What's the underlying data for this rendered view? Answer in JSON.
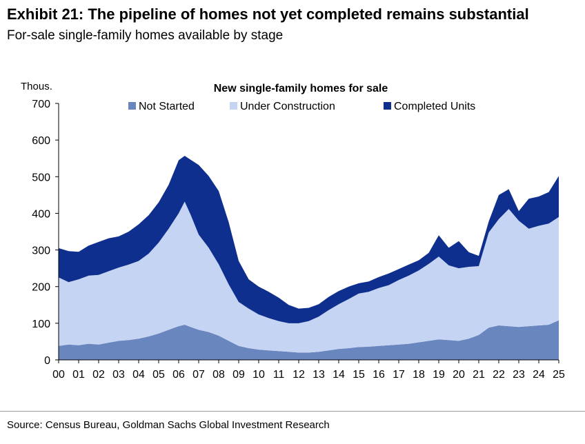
{
  "header": {
    "title": "Exhibit 21: The pipeline of homes not yet completed remains substantial",
    "subtitle": "For-sale single-family homes available by stage"
  },
  "footer": {
    "source": "Source: Census Bureau, Goldman Sachs Global Investment Research"
  },
  "chart_data": {
    "type": "area",
    "stacked": true,
    "title": "New single-family homes for sale",
    "ylabel": "Thous.",
    "xlabel": "",
    "ylim": [
      0,
      700
    ],
    "xlim": [
      2000,
      2025
    ],
    "yticks": [
      0,
      100,
      200,
      300,
      400,
      500,
      600,
      700
    ],
    "xtick_labels": [
      "00",
      "01",
      "02",
      "03",
      "04",
      "05",
      "06",
      "07",
      "08",
      "09",
      "10",
      "11",
      "12",
      "13",
      "14",
      "15",
      "16",
      "17",
      "18",
      "19",
      "20",
      "21",
      "22",
      "23",
      "24",
      "25"
    ],
    "legend_position": "top",
    "grid": false,
    "x": [
      2000.0,
      2000.5,
      2001.0,
      2001.5,
      2002.0,
      2002.5,
      2003.0,
      2003.5,
      2004.0,
      2004.5,
      2005.0,
      2005.5,
      2006.0,
      2006.3,
      2006.6,
      2007.0,
      2007.5,
      2008.0,
      2008.5,
      2009.0,
      2009.5,
      2010.0,
      2010.5,
      2011.0,
      2011.5,
      2012.0,
      2012.5,
      2013.0,
      2013.5,
      2014.0,
      2014.5,
      2015.0,
      2015.5,
      2016.0,
      2016.5,
      2017.0,
      2017.5,
      2018.0,
      2018.5,
      2019.0,
      2019.5,
      2020.0,
      2020.5,
      2021.0,
      2021.5,
      2022.0,
      2022.5,
      2023.0,
      2023.5,
      2024.0,
      2024.5,
      2025.0
    ],
    "series": [
      {
        "name": "Not Started",
        "color": "#6a86bf",
        "values": [
          38,
          42,
          40,
          44,
          42,
          47,
          52,
          54,
          58,
          64,
          72,
          82,
          92,
          96,
          90,
          82,
          76,
          66,
          52,
          38,
          32,
          28,
          26,
          24,
          22,
          20,
          20,
          22,
          26,
          30,
          32,
          35,
          36,
          38,
          40,
          42,
          44,
          48,
          52,
          56,
          54,
          52,
          58,
          68,
          88,
          94,
          92,
          90,
          92,
          94,
          96,
          108
        ]
      },
      {
        "name": "Under Construction",
        "color": "#c5d4f2",
        "values": [
          187,
          170,
          180,
          186,
          190,
          195,
          200,
          206,
          212,
          226,
          248,
          276,
          308,
          336,
          306,
          260,
          230,
          195,
          154,
          120,
          108,
          96,
          88,
          82,
          78,
          80,
          86,
          96,
          110,
          122,
          134,
          146,
          150,
          158,
          164,
          176,
          186,
          196,
          210,
          226,
          204,
          198,
          196,
          188,
          260,
          290,
          320,
          290,
          266,
          272,
          276,
          282
        ]
      },
      {
        "name": "Completed Units",
        "color": "#0f2f8f",
        "values": [
          80,
          85,
          75,
          82,
          90,
          90,
          85,
          90,
          100,
          105,
          110,
          120,
          145,
          125,
          150,
          190,
          196,
          200,
          170,
          112,
          80,
          76,
          72,
          64,
          50,
          40,
          36,
          34,
          36,
          36,
          34,
          28,
          28,
          30,
          32,
          30,
          30,
          28,
          30,
          58,
          48,
          74,
          40,
          28,
          30,
          66,
          54,
          26,
          82,
          80,
          86,
          112
        ]
      }
    ]
  }
}
